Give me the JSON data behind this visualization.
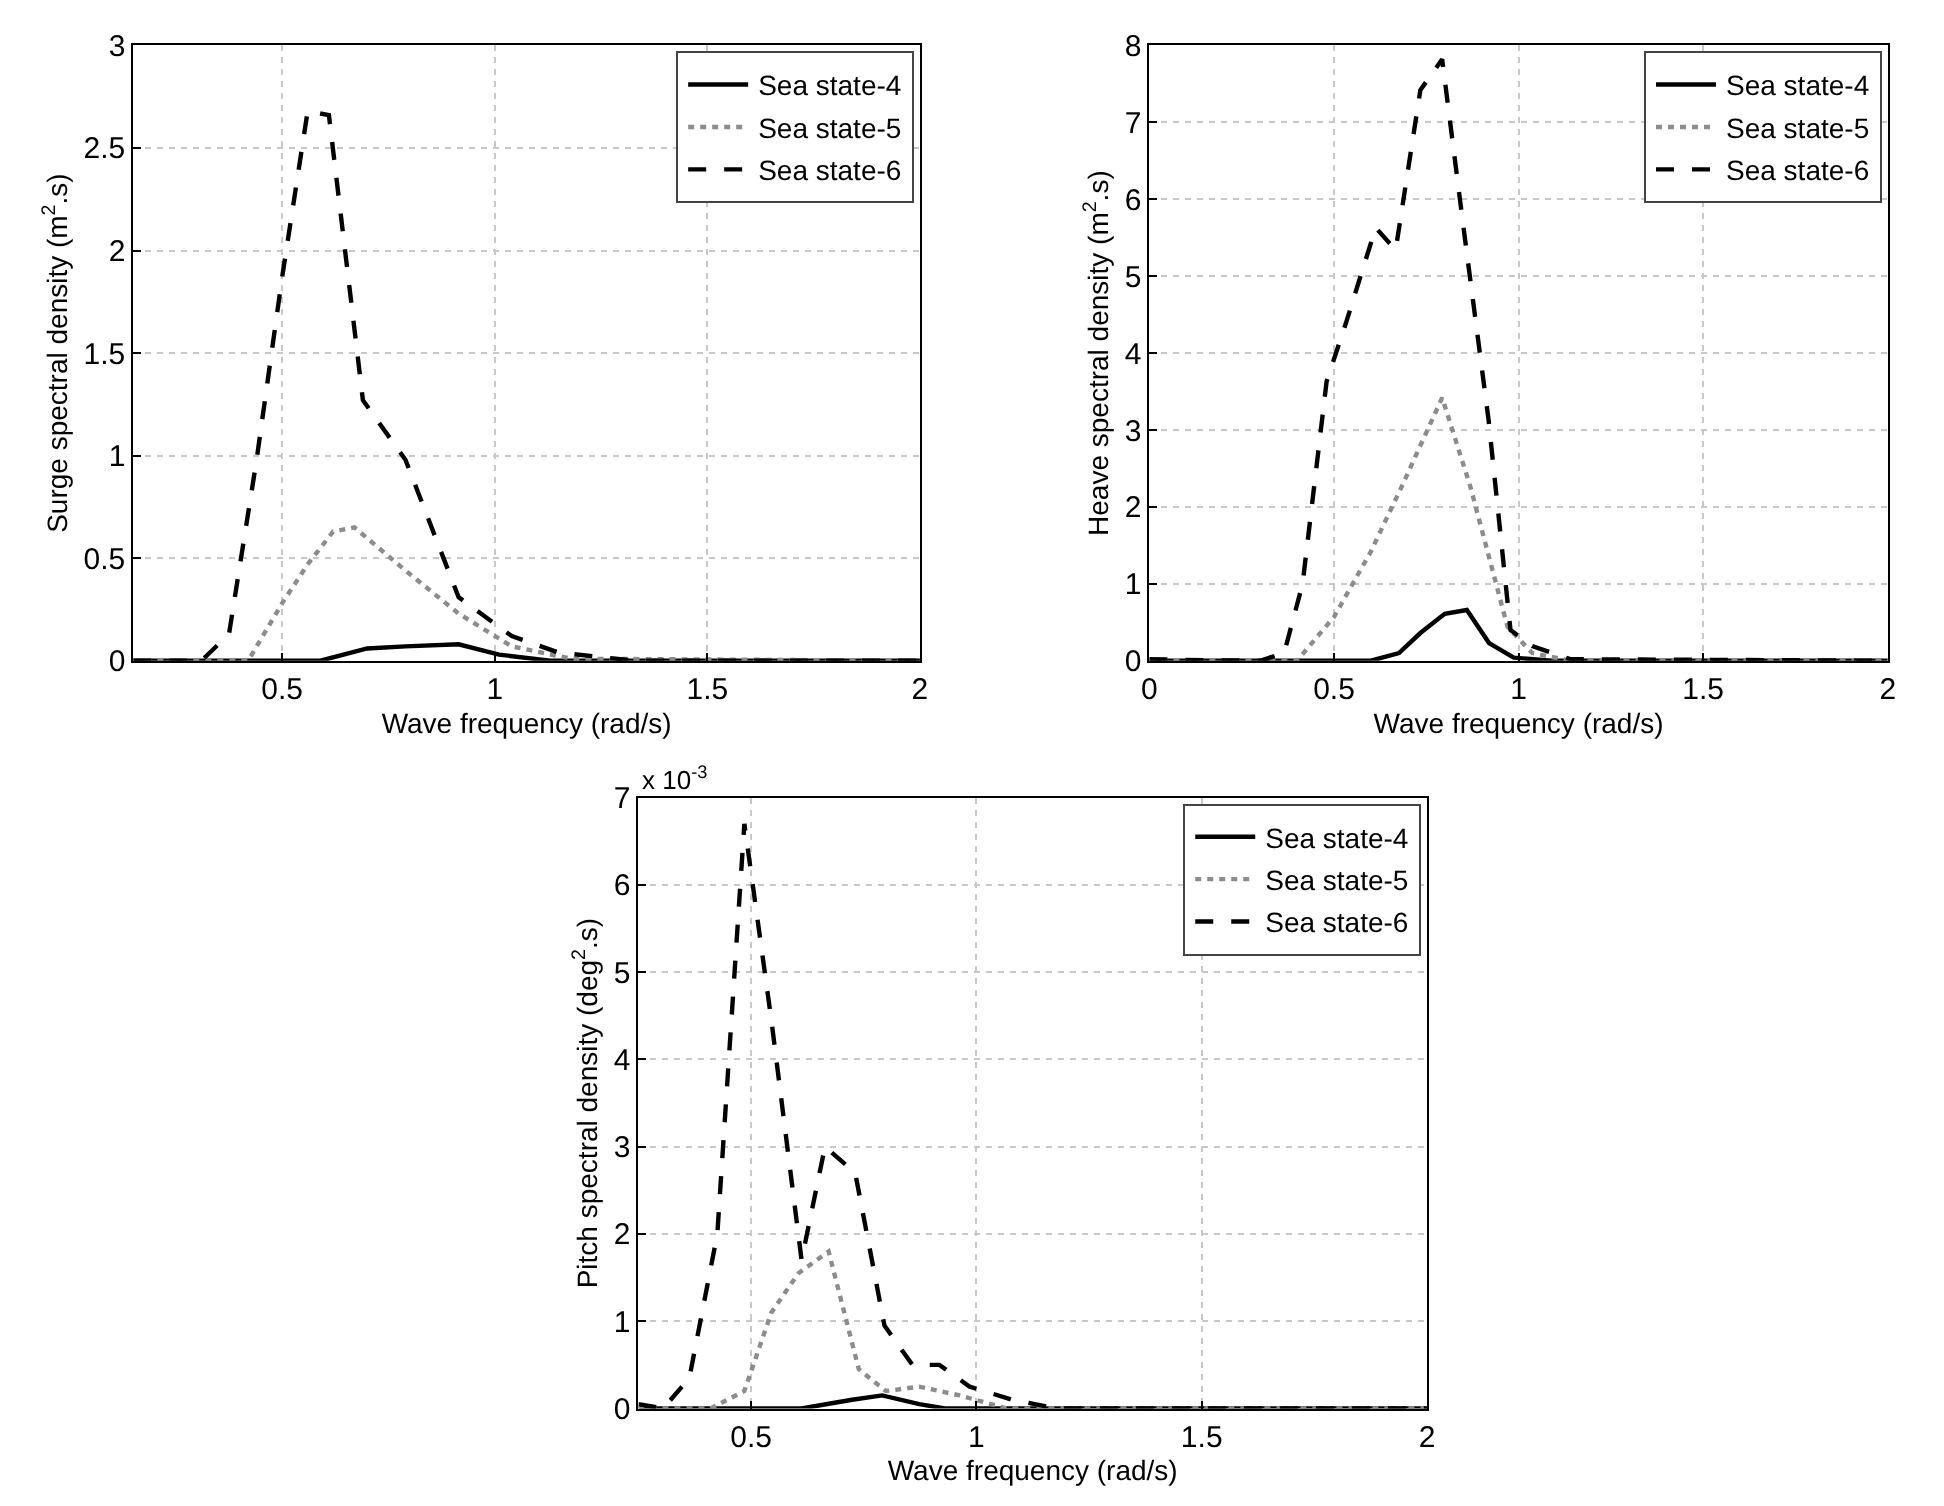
{
  "chart_data": [
    {
      "type": "line",
      "xlabel": "Wave frequency (rad/s)",
      "ylabel": "Surge spectral density (m$^{2}$.s)",
      "xlim": [
        0.15,
        2
      ],
      "xticks": [
        0.5,
        1,
        1.5,
        2
      ],
      "ylim": [
        0,
        3
      ],
      "yticks": [
        0,
        0.5,
        1,
        1.5,
        2,
        2.5,
        3
      ],
      "grid": true,
      "legend": "top right",
      "series": [
        {
          "name": "Sea state-4",
          "color": "#000000",
          "line_style": "solid",
          "x": [
            0.15,
            0.59,
            0.7,
            0.79,
            0.915,
            1.01,
            1.13,
            2
          ],
          "values": [
            0,
            0,
            0.06,
            0.07,
            0.08,
            0.03,
            0,
            0
          ]
        },
        {
          "name": "Sea state-5",
          "color": "#8c8c8c",
          "line_style": "dotted",
          "x": [
            0.15,
            0.42,
            0.5,
            0.56,
            0.62,
            0.67,
            0.79,
            0.915,
            1.04,
            1.18,
            2
          ],
          "values": [
            0,
            0,
            0.28,
            0.47,
            0.63,
            0.65,
            0.44,
            0.23,
            0.07,
            0.01,
            0
          ]
        },
        {
          "name": "Sea state-6",
          "color": "#000000",
          "line_style": "dashed",
          "x": [
            0.15,
            0.31,
            0.375,
            0.44,
            0.5,
            0.56,
            0.61,
            0.69,
            0.79,
            0.915,
            1.04,
            1.15,
            1.33,
            2
          ],
          "values": [
            0,
            0,
            0.13,
            0.98,
            1.87,
            2.68,
            2.66,
            1.27,
            0.98,
            0.31,
            0.12,
            0.04,
            0,
            0
          ]
        }
      ]
    },
    {
      "type": "line",
      "xlabel": "Wave frequency (rad/s)",
      "ylabel": "Heave spectral density (m$^{2}$.s)",
      "xlim": [
        0,
        2
      ],
      "xticks": [
        0,
        0.5,
        1,
        1.5,
        2
      ],
      "ylim": [
        0,
        8
      ],
      "yticks": [
        0,
        1,
        2,
        3,
        4,
        5,
        6,
        7,
        8
      ],
      "grid": true,
      "legend": "top right",
      "series": [
        {
          "name": "Sea state-4",
          "color": "#000000",
          "line_style": "solid",
          "x": [
            0,
            0.6,
            0.676,
            0.734,
            0.8,
            0.86,
            0.92,
            0.987,
            1.09,
            2
          ],
          "values": [
            0,
            0,
            0.1,
            0.36,
            0.61,
            0.66,
            0.23,
            0.04,
            0,
            0
          ]
        },
        {
          "name": "Sea state-5",
          "color": "#8c8c8c",
          "line_style": "dotted",
          "x": [
            0,
            0.4,
            0.5,
            0.6,
            0.684,
            0.793,
            0.869,
            0.97,
            1.037,
            1.14,
            2
          ],
          "values": [
            0,
            0,
            0.57,
            1.42,
            2.27,
            3.42,
            2.27,
            0.44,
            0.1,
            0,
            0
          ]
        },
        {
          "name": "Sea state-6",
          "color": "#000000",
          "line_style": "dashed",
          "x": [
            0,
            0.1,
            0.3,
            0.365,
            0.415,
            0.48,
            0.533,
            0.613,
            0.667,
            0.734,
            0.793,
            0.852,
            0.919,
            0.978,
            1.037,
            1.14,
            2
          ],
          "values": [
            0.02,
            0.01,
            0,
            0.1,
            1.0,
            3.63,
            4.4,
            5.63,
            5.34,
            7.42,
            7.82,
            5.59,
            3.12,
            0.4,
            0.19,
            0.02,
            0
          ]
        }
      ]
    },
    {
      "type": "line",
      "xlabel": "Wave frequency (rad/s)",
      "ylabel": "Pitch spectral density (deg$^{2}$.s)",
      "annotations": [
        "x 10$^{-3}$"
      ],
      "xlim": [
        0.25,
        2
      ],
      "xticks": [
        0.5,
        1,
        1.5,
        2
      ],
      "ylim": [
        0,
        7
      ],
      "yticks": [
        0,
        1,
        2,
        3,
        4,
        5,
        6,
        7
      ],
      "grid": true,
      "legend": "top right",
      "series": [
        {
          "name": "Sea state-4",
          "color": "#000000",
          "line_style": "solid",
          "x": [
            0.25,
            0.612,
            0.724,
            0.791,
            0.873,
            0.93,
            2
          ],
          "values": [
            0,
            0,
            0.1,
            0.15,
            0.05,
            0,
            0
          ]
        },
        {
          "name": "Sea state-5",
          "color": "#8c8c8c",
          "line_style": "dotted",
          "x": [
            0.25,
            0.41,
            0.485,
            0.545,
            0.605,
            0.672,
            0.739,
            0.799,
            0.873,
            0.963,
            1.067,
            2
          ],
          "values": [
            0,
            0,
            0.2,
            1.1,
            1.55,
            1.8,
            0.45,
            0.2,
            0.25,
            0.15,
            0,
            0
          ]
        },
        {
          "name": "Sea state-6",
          "color": "#000000",
          "line_style": "dashed",
          "x": [
            0.25,
            0.305,
            0.363,
            0.425,
            0.485,
            0.545,
            0.612,
            0.664,
            0.731,
            0.796,
            0.858,
            0.918,
            0.985,
            1.08,
            1.18,
            1.37,
            2
          ],
          "values": [
            0.05,
            0,
            0.35,
            2.0,
            6.7,
            4.45,
            1.7,
            3.0,
            2.7,
            0.95,
            0.5,
            0.5,
            0.25,
            0.1,
            0,
            0,
            0
          ]
        }
      ]
    }
  ]
}
